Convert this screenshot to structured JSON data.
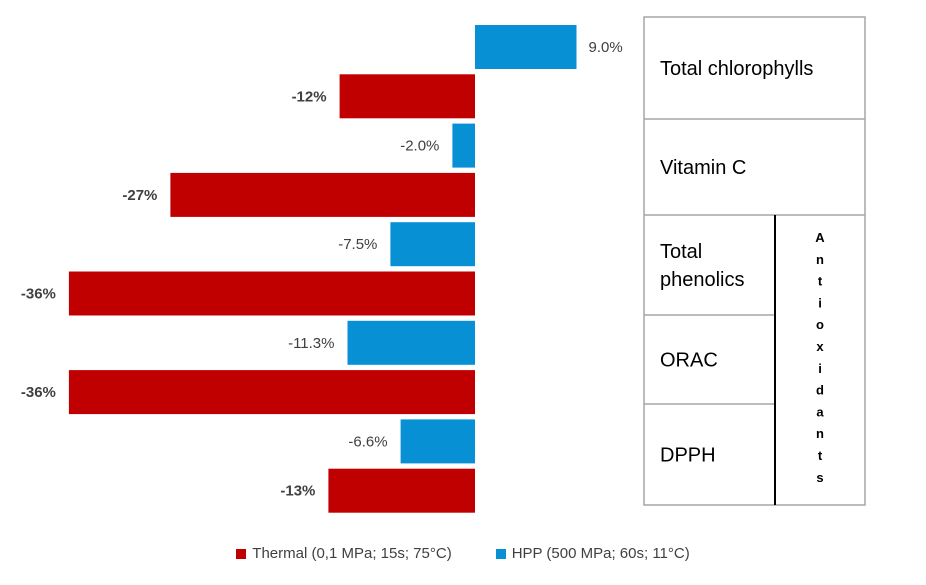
{
  "chart_data": {
    "type": "bar",
    "orientation": "horizontal",
    "series": [
      {
        "name": "Thermal (0,1 MPa; 15s; 75°C)",
        "color": "#C00000"
      },
      {
        "name": "HPP (500 MPa; 60s; 11°C)",
        "color": "#0791D4"
      }
    ],
    "bars": [
      {
        "series": "HPP (500 MPa; 60s; 11°C)",
        "value": 9.0,
        "label": "9.0%"
      },
      {
        "series": "Thermal (0,1 MPa; 15s; 75°C)",
        "value": -12,
        "label": "-12%"
      },
      {
        "series": "HPP (500 MPa; 60s; 11°C)",
        "value": -2.0,
        "label": "-2.0%"
      },
      {
        "series": "Thermal (0,1 MPa; 15s; 75°C)",
        "value": -27,
        "label": "-27%"
      },
      {
        "series": "HPP (500 MPa; 60s; 11°C)",
        "value": -7.5,
        "label": "-7.5%"
      },
      {
        "series": "Thermal (0,1 MPa; 15s; 75°C)",
        "value": -36,
        "label": "-36%"
      },
      {
        "series": "HPP (500 MPa; 60s; 11°C)",
        "value": -11.3,
        "label": "-11.3%"
      },
      {
        "series": "Thermal (0,1 MPa; 15s; 75°C)",
        "value": -36,
        "label": "-36%"
      },
      {
        "series": "HPP (500 MPa; 60s; 11°C)",
        "value": -6.6,
        "label": "-6.6%"
      },
      {
        "series": "Thermal (0,1 MPa; 15s; 75°C)",
        "value": -13,
        "label": "-13%"
      }
    ],
    "categories": [
      {
        "lines": [
          "Total chlorophylls"
        ]
      },
      {
        "lines": [
          "Vitamin C"
        ]
      },
      {
        "lines": [
          "Total",
          "phenolics"
        ]
      },
      {
        "lines": [
          "ORAC"
        ]
      },
      {
        "lines": [
          "DPPH"
        ]
      }
    ],
    "group_label": "Antioxidants",
    "legend_position": "bottom"
  }
}
